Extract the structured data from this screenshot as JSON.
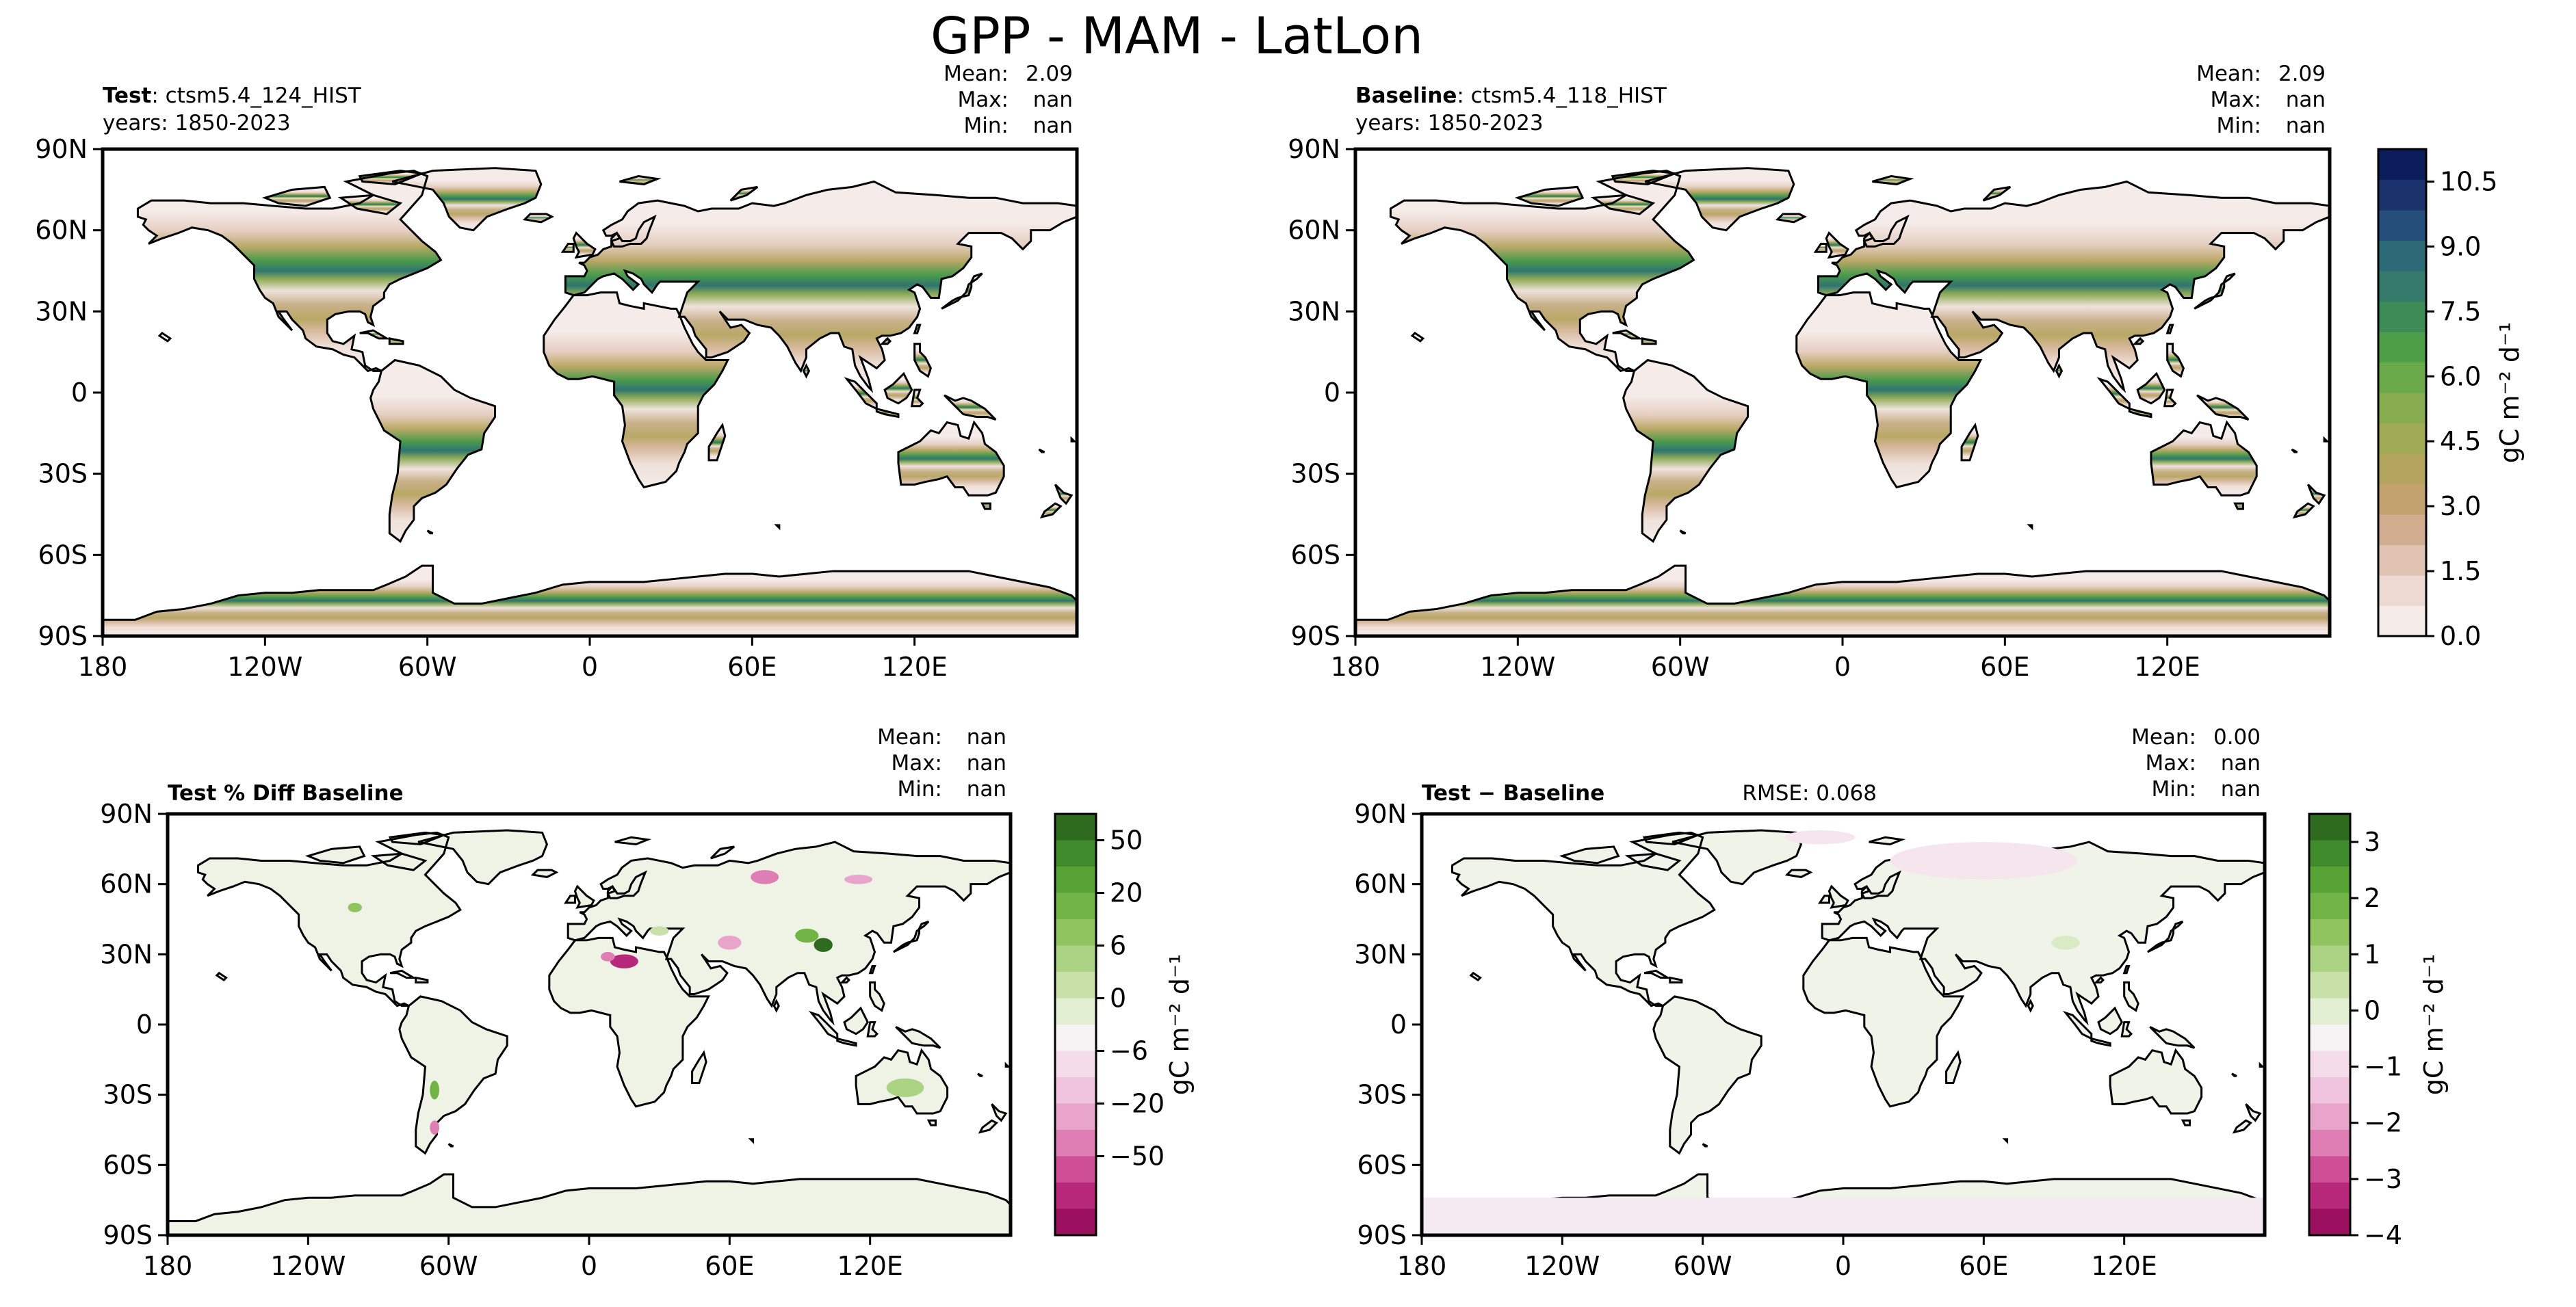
{
  "figure_title": "GPP - MAM - LatLon",
  "colors": {
    "axes": "#000000",
    "ocean": "#ffffff",
    "land_gpp_low": "#f5ebe8",
    "land_diff_zero": "#f2f5ea",
    "coast": "#000000"
  },
  "chart_data": [
    {
      "type": "heatmap",
      "panel_id": "test",
      "title_bold": "Test",
      "title_rest": ": ctsm5.4_124_HIST",
      "years": "years: 1850-2023",
      "stats": [
        {
          "label": "Mean:",
          "value": "2.09"
        },
        {
          "label": "Max:",
          "value": "nan"
        },
        {
          "label": "Min:",
          "value": "nan"
        }
      ],
      "xlim": [
        -180,
        180
      ],
      "ylim": [
        -90,
        90
      ],
      "x_ticks": [
        -180,
        -120,
        -60,
        0,
        60,
        120
      ],
      "x_tick_labels": [
        "180",
        "120W",
        "60W",
        "0",
        "60E",
        "120E"
      ],
      "y_ticks": [
        90,
        60,
        30,
        0,
        -30,
        -60,
        -90
      ],
      "y_tick_labels": [
        "90N",
        "60N",
        "30N",
        "0",
        "30S",
        "60S",
        "90S"
      ],
      "variable": "GPP",
      "season": "MAM"
    },
    {
      "type": "heatmap",
      "panel_id": "baseline",
      "title_bold": "Baseline",
      "title_rest": ": ctsm5.4_118_HIST",
      "years": "years: 1850-2023",
      "stats": [
        {
          "label": "Mean:",
          "value": "2.09"
        },
        {
          "label": "Max:",
          "value": "nan"
        },
        {
          "label": "Min:",
          "value": "nan"
        }
      ],
      "xlim": [
        -180,
        180
      ],
      "ylim": [
        -90,
        90
      ],
      "x_ticks": [
        -180,
        -120,
        -60,
        0,
        60,
        120
      ],
      "x_tick_labels": [
        "180",
        "120W",
        "60W",
        "0",
        "60E",
        "120E"
      ],
      "y_ticks": [
        90,
        60,
        30,
        0,
        -30,
        -60,
        -90
      ],
      "y_tick_labels": [
        "90N",
        "60N",
        "30N",
        "0",
        "30S",
        "60S",
        "90S"
      ],
      "colorbar": {
        "label": "gC m⁻² d⁻¹",
        "range": [
          0,
          11.25
        ],
        "ticks": [
          0.0,
          1.5,
          3.0,
          4.5,
          6.0,
          7.5,
          9.0,
          10.5
        ],
        "tick_labels": [
          "0.0",
          "1.5",
          "3.0",
          "4.5",
          "6.0",
          "7.5",
          "9.0",
          "10.5"
        ],
        "levels": 15,
        "colors": [
          "#f5ebe8",
          "#ecd9d2",
          "#e0c3b3",
          "#d2ac8f",
          "#c4a270",
          "#b3a45e",
          "#a1aa55",
          "#87ad50",
          "#6aaa4a",
          "#4e9e48",
          "#3d8c58",
          "#357a6a",
          "#2d6a78",
          "#254f7a",
          "#1b336c",
          "#0c1d5c"
        ]
      }
    },
    {
      "type": "heatmap",
      "panel_id": "pct_diff",
      "title_bold": "Test % Diff Baseline",
      "stats": [
        {
          "label": "Mean:",
          "value": "nan"
        },
        {
          "label": "Max:",
          "value": "nan"
        },
        {
          "label": "Min:",
          "value": "nan"
        }
      ],
      "xlim": [
        -180,
        180
      ],
      "ylim": [
        -90,
        90
      ],
      "x_ticks": [
        -180,
        -120,
        -60,
        0,
        60,
        120
      ],
      "x_tick_labels": [
        "180",
        "120W",
        "60W",
        "0",
        "60E",
        "120E"
      ],
      "y_ticks": [
        90,
        60,
        30,
        0,
        -30,
        -60,
        -90
      ],
      "y_tick_labels": [
        "90N",
        "60N",
        "30N",
        "0",
        "30S",
        "60S",
        "90S"
      ],
      "colorbar": {
        "label": "gC m⁻² d⁻¹",
        "tick_labels": [
          "50",
          "20",
          "6",
          "0",
          "−6",
          "−20",
          "−50"
        ],
        "tick_levels_from_top": [
          1,
          3,
          5,
          7,
          9,
          11,
          13
        ],
        "levels": 15,
        "colors": [
          "#2e6b1e",
          "#3f8a2a",
          "#57a336",
          "#72b446",
          "#8fc45f",
          "#abd383",
          "#c7e1a8",
          "#e3efd2",
          "#f7f2f4",
          "#f5dcea",
          "#f0c4de",
          "#e8a4cb",
          "#de7eb5",
          "#cf4f97",
          "#b8287a",
          "#9b0f5f"
        ]
      }
    },
    {
      "type": "heatmap",
      "panel_id": "abs_diff",
      "title_bold": "Test − Baseline",
      "rmse": "RMSE: 0.068",
      "stats": [
        {
          "label": "Mean:",
          "value": "0.00"
        },
        {
          "label": "Max:",
          "value": "nan"
        },
        {
          "label": "Min:",
          "value": "nan"
        }
      ],
      "xlim": [
        -180,
        180
      ],
      "ylim": [
        -90,
        90
      ],
      "x_ticks": [
        -180,
        -120,
        -60,
        0,
        60,
        120
      ],
      "x_tick_labels": [
        "180",
        "120W",
        "60W",
        "0",
        "60E",
        "120E"
      ],
      "y_ticks": [
        90,
        60,
        30,
        0,
        -30,
        -60,
        -90
      ],
      "y_tick_labels": [
        "90N",
        "60N",
        "30N",
        "0",
        "30S",
        "60S",
        "90S"
      ],
      "colorbar": {
        "label": "gC m⁻² d⁻¹",
        "range": [
          -4,
          3.5
        ],
        "ticks": [
          3,
          2,
          1,
          0,
          -1,
          -2,
          -3,
          -4
        ],
        "tick_labels": [
          "3",
          "2",
          "1",
          "0",
          "−1",
          "−2",
          "−3",
          "−4"
        ],
        "levels": 15,
        "colors": [
          "#2e6b1e",
          "#3f8a2a",
          "#57a336",
          "#72b446",
          "#8fc45f",
          "#abd383",
          "#c7e1a8",
          "#e3efd2",
          "#f7f2f4",
          "#f5dcea",
          "#f0c4de",
          "#e8a4cb",
          "#de7eb5",
          "#cf4f97",
          "#b8287a",
          "#9b0f5f"
        ]
      }
    }
  ]
}
